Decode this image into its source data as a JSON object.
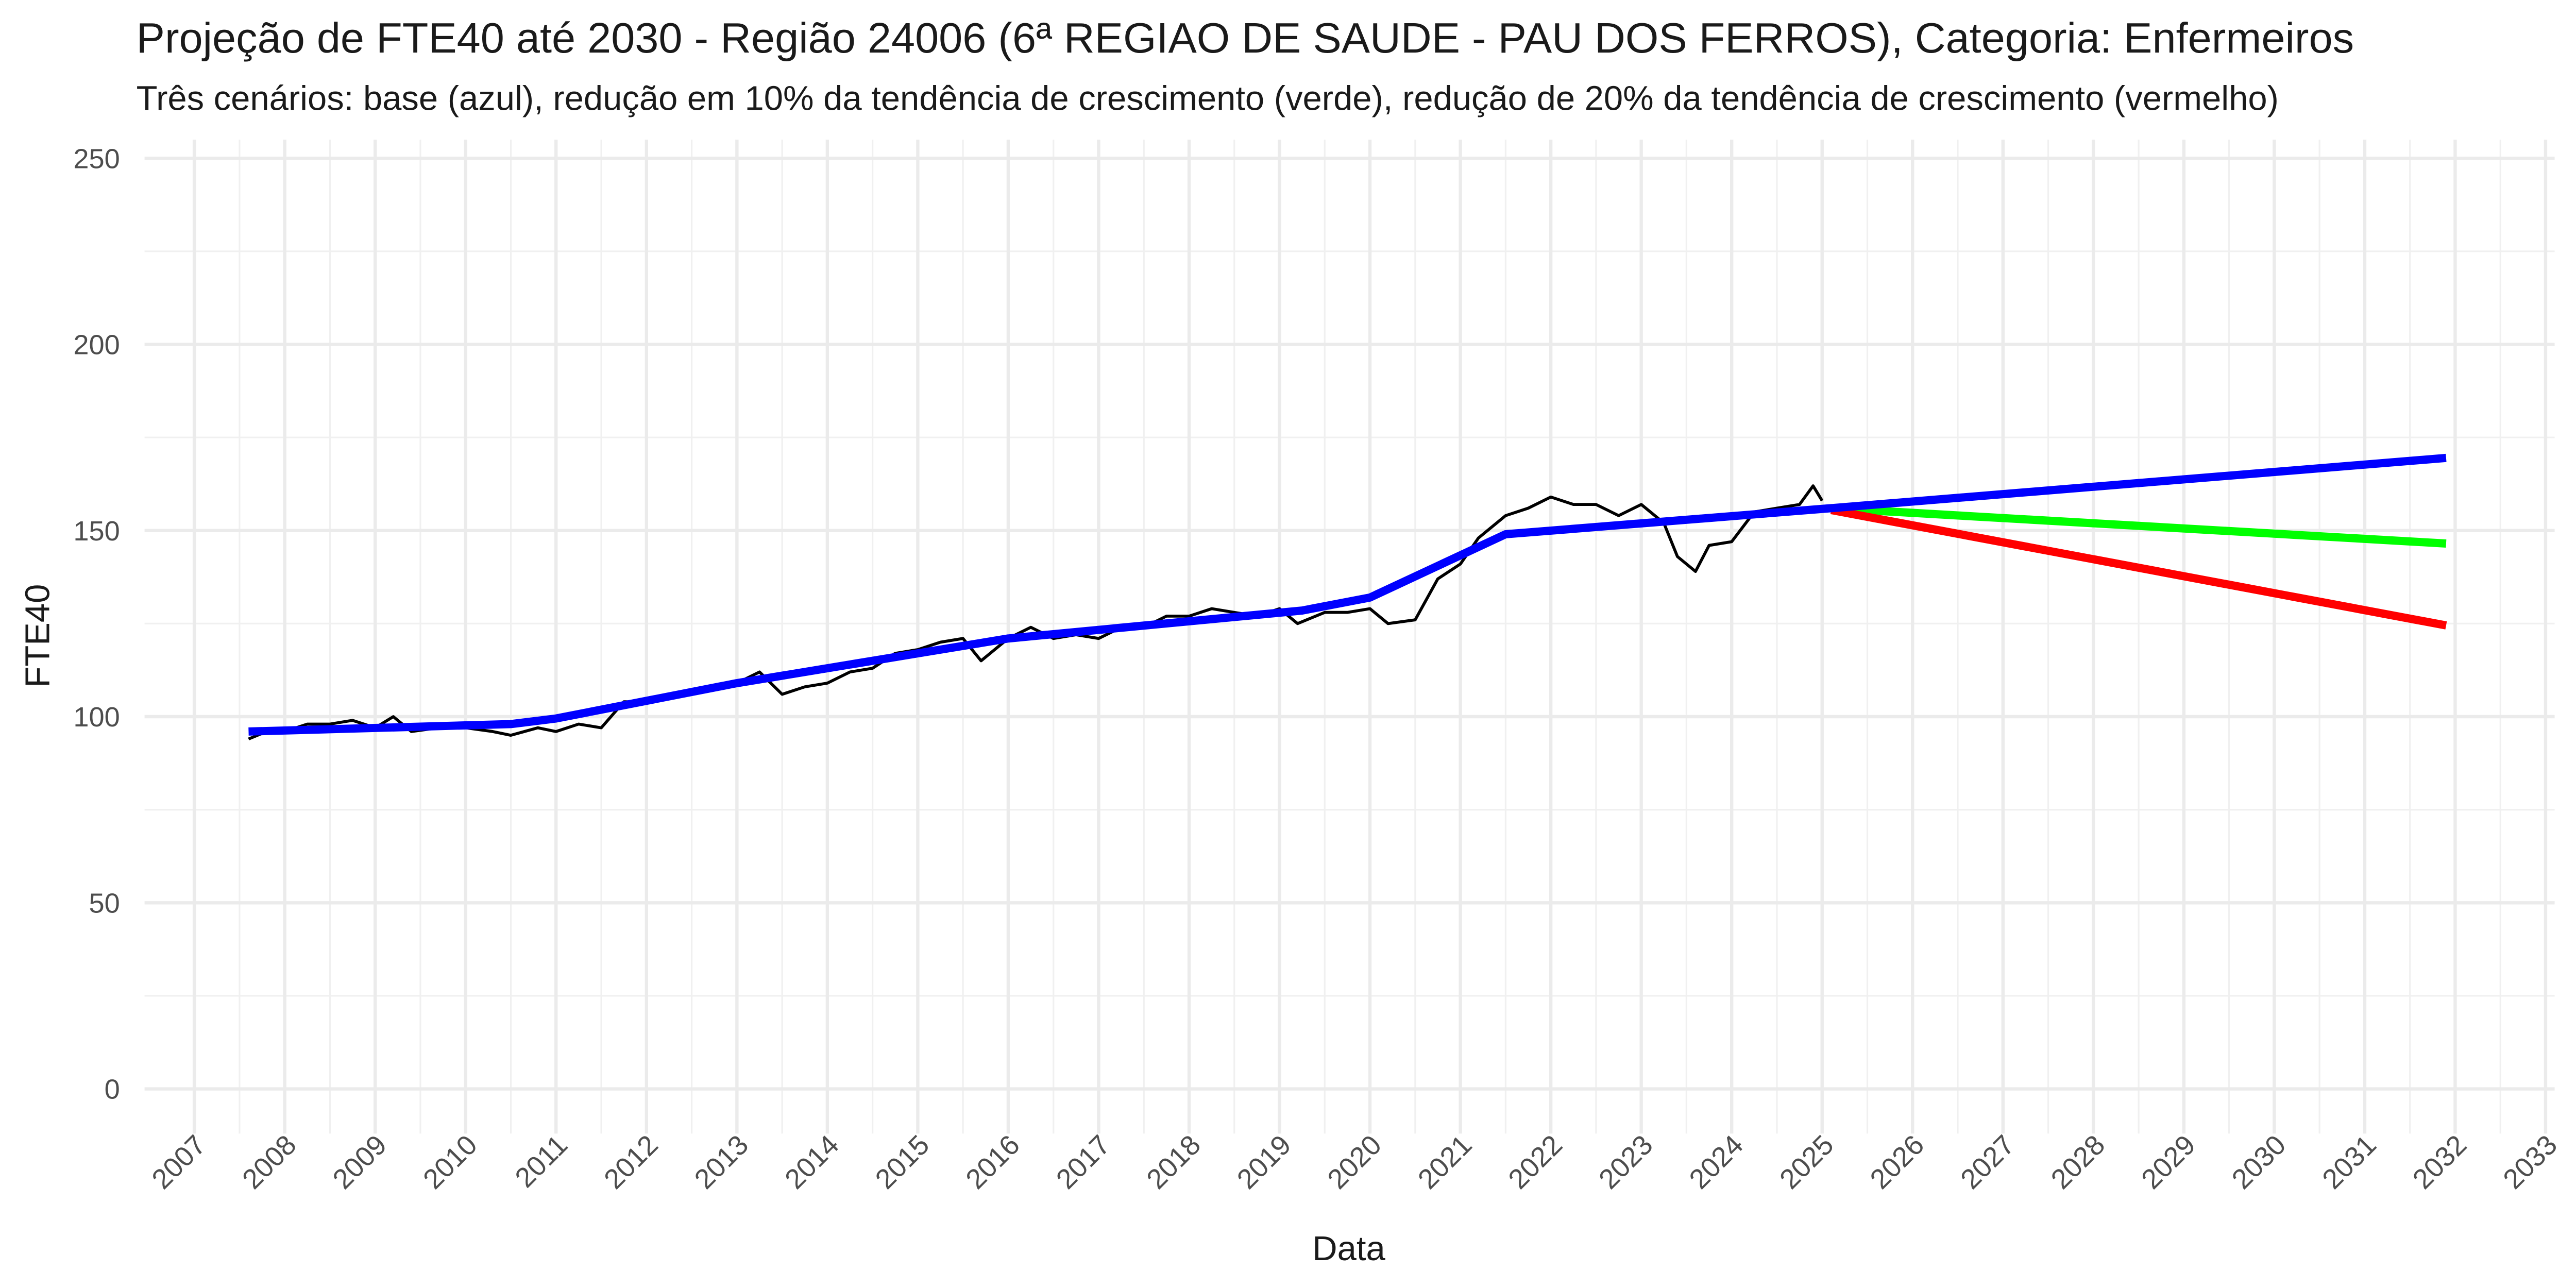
{
  "chart_data": {
    "type": "line",
    "title": "Projeção de FTE40 até 2030 - Região 24006 (6ª REGIAO DE SAUDE - PAU DOS FERROS), Categoria: Enfermeiros",
    "subtitle": "Três cenários: base (azul), redução em 10% da tendência de crescimento (verde), redução de 20% da tendência de crescimento (vermelho)",
    "x_label": "Data",
    "y_label": "FTE40",
    "xlim": [
      2006.45,
      2033.1
    ],
    "ylim": [
      -12,
      255
    ],
    "xticks": [
      2007,
      2008,
      2009,
      2010,
      2011,
      2012,
      2013,
      2014,
      2015,
      2016,
      2017,
      2018,
      2019,
      2020,
      2021,
      2022,
      2023,
      2024,
      2025,
      2026,
      2027,
      2028,
      2029,
      2030,
      2031,
      2032,
      2033
    ],
    "yticks": [
      0,
      50,
      100,
      150,
      200,
      250
    ],
    "grid": true,
    "series": [
      {
        "color": "#000000",
        "x": [
          2007.6,
          2007.8,
          2008.0,
          2008.25,
          2008.5,
          2008.75,
          2009.0,
          2009.2,
          2009.4,
          2009.7,
          2010.0,
          2010.3,
          2010.5,
          2010.8,
          2011.0,
          2011.25,
          2011.5,
          2011.75,
          2012.0,
          2012.25,
          2012.5,
          2012.75,
          2013.0,
          2013.25,
          2013.5,
          2013.75,
          2014.0,
          2014.25,
          2014.5,
          2014.75,
          2015.0,
          2015.25,
          2015.5,
          2015.7,
          2016.0,
          2016.25,
          2016.5,
          2016.75,
          2017.0,
          2017.25,
          2017.5,
          2017.75,
          2018.0,
          2018.25,
          2018.5,
          2018.75,
          2019.0,
          2019.2,
          2019.5,
          2019.75,
          2020.0,
          2020.2,
          2020.5,
          2020.75,
          2021.0,
          2021.2,
          2021.5,
          2021.75,
          2022.0,
          2022.25,
          2022.5,
          2022.75,
          2023.0,
          2023.25,
          2023.4,
          2023.6,
          2023.75,
          2024.0,
          2024.25,
          2024.5,
          2024.75,
          2024.9,
          2025.0
        ],
        "values": [
          94,
          96,
          96,
          98,
          98,
          99,
          97,
          100,
          96,
          97,
          97,
          96,
          95,
          97,
          96,
          98,
          97,
          104,
          104,
          106,
          107,
          108,
          109,
          112,
          106,
          108,
          109,
          112,
          113,
          117,
          118,
          120,
          121,
          115,
          121,
          124,
          121,
          122,
          121,
          124,
          124,
          127,
          127,
          129,
          128,
          127,
          129,
          125,
          128,
          128,
          129,
          125,
          126,
          137,
          141,
          148,
          154,
          156,
          159,
          157,
          157,
          154,
          157,
          152,
          143,
          139,
          146,
          147,
          155,
          156,
          157,
          162,
          158
        ]
      },
      {
        "color": "#00ff00",
        "x": [
          2025.1,
          2031.9
        ],
        "values": [
          156,
          146.5
        ]
      },
      {
        "color": "#ff0000",
        "x": [
          2025.1,
          2031.9
        ],
        "values": [
          155.5,
          124.5
        ]
      },
      {
        "color": "#0000ff",
        "x": [
          2007.6,
          2010.5,
          2011.0,
          2013.0,
          2016.0,
          2019.25,
          2020.0,
          2021.5,
          2025.1,
          2031.9
        ],
        "values": [
          96,
          98,
          99.5,
          109,
          121,
          128.5,
          132,
          149,
          156,
          169.5
        ]
      }
    ]
  }
}
